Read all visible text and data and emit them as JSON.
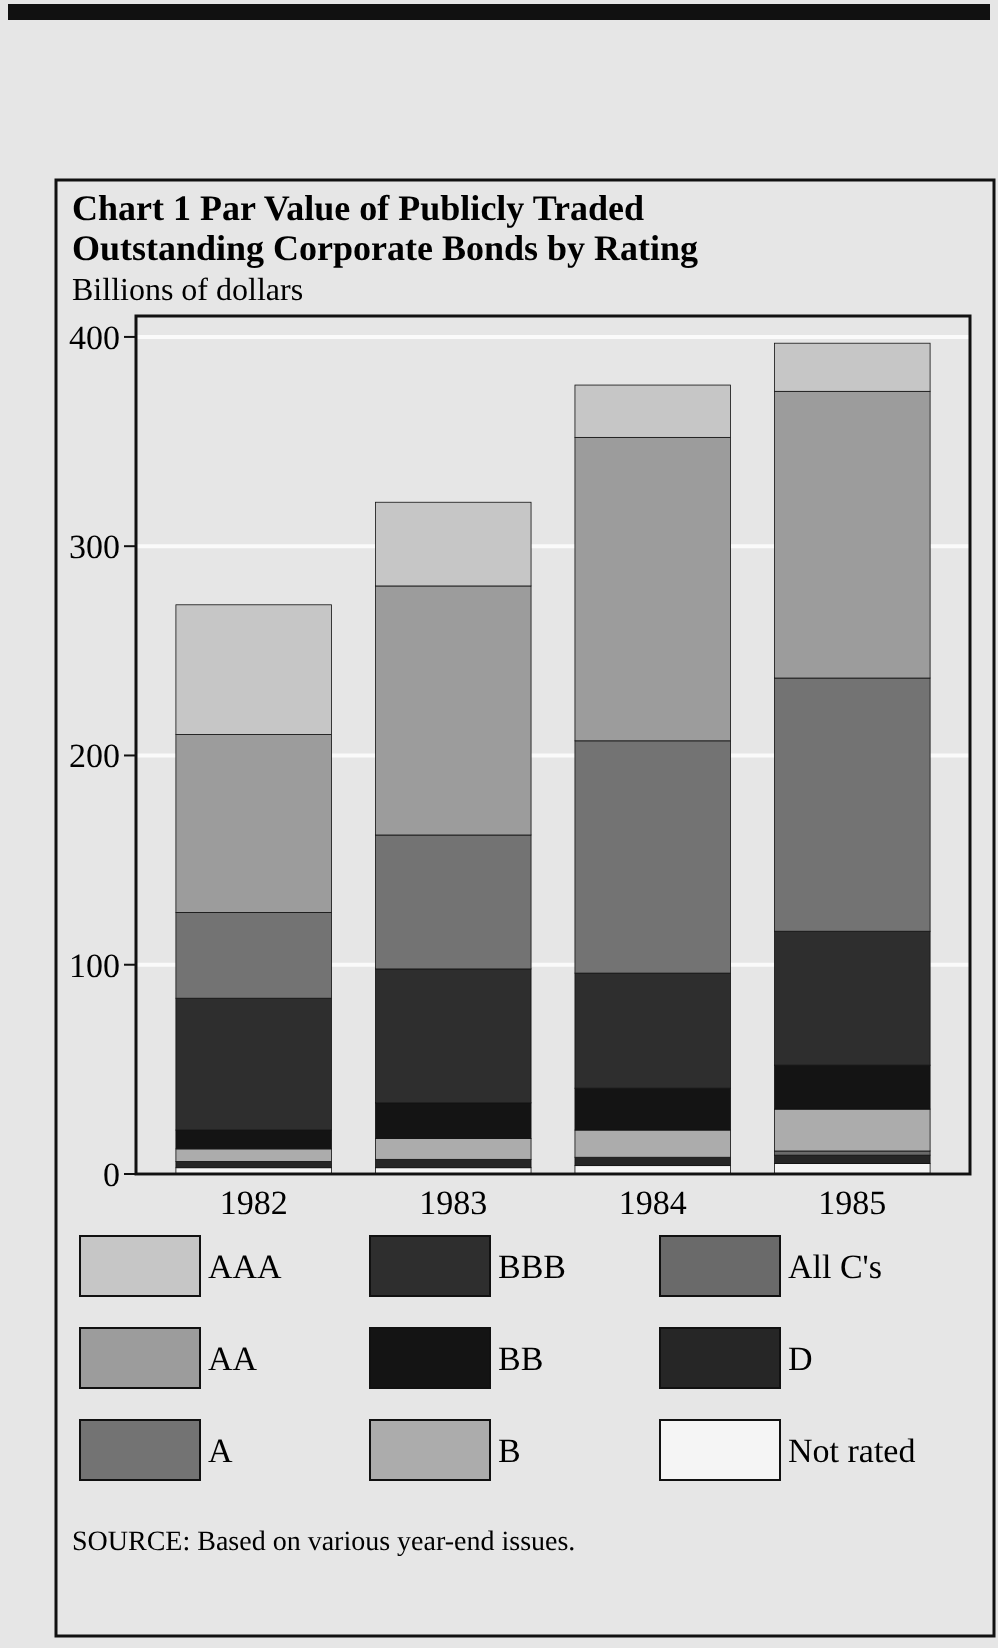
{
  "chart_data": {
    "type": "bar",
    "stacked": true,
    "title": "Chart 1  Par Value of Publicly Traded Outstanding Corporate Bonds by Rating",
    "subtitle": "Billions of dollars",
    "categories": [
      "1982",
      "1983",
      "1984",
      "1985"
    ],
    "series": [
      {
        "name": "Not rated",
        "color": "#f5f5f5",
        "values": [
          3,
          3,
          4,
          5
        ]
      },
      {
        "name": "D",
        "color": "#262626",
        "values": [
          3,
          4,
          4,
          4
        ]
      },
      {
        "name": "All C's",
        "color": "#6a6a6a",
        "values": [
          null,
          null,
          null,
          2
        ]
      },
      {
        "name": "B",
        "color": "#acacac",
        "values": [
          6,
          10,
          13,
          20
        ]
      },
      {
        "name": "BB",
        "color": "#141414",
        "values": [
          9,
          17,
          20,
          21
        ]
      },
      {
        "name": "BBB",
        "color": "#2e2e2e",
        "values": [
          63,
          64,
          55,
          64
        ]
      },
      {
        "name": "A",
        "color": "#737373",
        "values": [
          41,
          64,
          111,
          121
        ]
      },
      {
        "name": "AA",
        "color": "#9c9c9c",
        "values": [
          85,
          119,
          145,
          137
        ]
      },
      {
        "name": "AAA",
        "color": "#c6c6c6",
        "values": [
          62,
          40,
          25,
          23
        ]
      }
    ],
    "ylim": [
      0,
      410
    ],
    "yticks": [
      0,
      100,
      200,
      300,
      400
    ],
    "grid": "y",
    "legend": "bottom",
    "annotations": [
      "SOURCE: Based on various year-end issues."
    ]
  }
}
